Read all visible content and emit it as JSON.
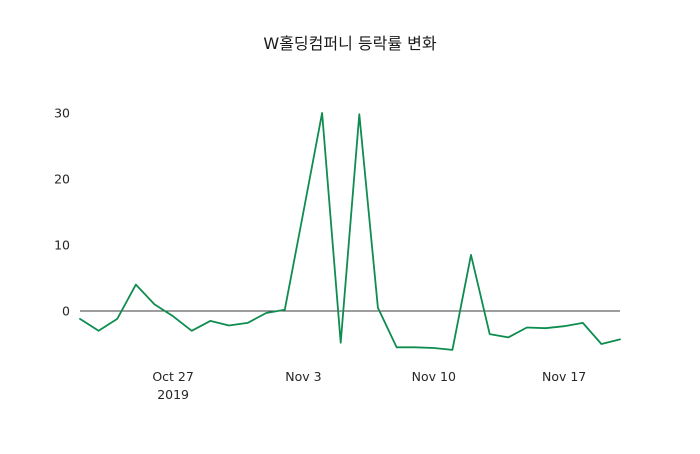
{
  "figure": {
    "background": "#ffffff"
  },
  "chart_data": {
    "type": "line",
    "title": "W홀딩컴퍼니 등락률 변화",
    "xlabel": "",
    "ylabel": "",
    "legend": "none",
    "grid": false,
    "line_color": "#0f8c4f",
    "line_width": 1.8,
    "tick_color": "#262626",
    "zero_line": {
      "value": 0,
      "color": "#3d3d3d"
    },
    "yticks": [
      0,
      10,
      20,
      30
    ],
    "ylim": [
      -7.5,
      31.5
    ],
    "x": [
      "2019-10-22",
      "2019-10-23",
      "2019-10-24",
      "2019-10-25",
      "2019-10-26",
      "2019-10-27",
      "2019-10-28",
      "2019-10-29",
      "2019-10-30",
      "2019-10-31",
      "2019-11-01",
      "2019-11-02",
      "2019-11-03",
      "2019-11-04",
      "2019-11-05",
      "2019-11-06",
      "2019-11-07",
      "2019-11-08",
      "2019-11-09",
      "2019-11-10",
      "2019-11-11",
      "2019-11-12",
      "2019-11-13",
      "2019-11-14",
      "2019-11-15",
      "2019-11-16",
      "2019-11-17",
      "2019-11-18",
      "2019-11-19",
      "2019-11-20"
    ],
    "y": [
      -1.2,
      -3.0,
      -1.2,
      4.0,
      1.0,
      -0.8,
      -3.0,
      -1.5,
      -2.2,
      -1.8,
      -0.3,
      0.2,
      15.0,
      30.0,
      -4.8,
      29.8,
      0.5,
      -5.5,
      -5.5,
      -5.6,
      -5.9,
      8.5,
      -3.5,
      -4.0,
      -2.5,
      -2.6,
      -2.3,
      -1.8,
      -5.0,
      -4.3
    ],
    "xticks": [
      {
        "date": "2019-10-27",
        "label": "Oct 27",
        "sublabel": "2019"
      },
      {
        "date": "2019-11-03",
        "label": "Nov 3",
        "sublabel": ""
      },
      {
        "date": "2019-11-10",
        "label": "Nov 10",
        "sublabel": ""
      },
      {
        "date": "2019-11-17",
        "label": "Nov 17",
        "sublabel": ""
      }
    ]
  }
}
